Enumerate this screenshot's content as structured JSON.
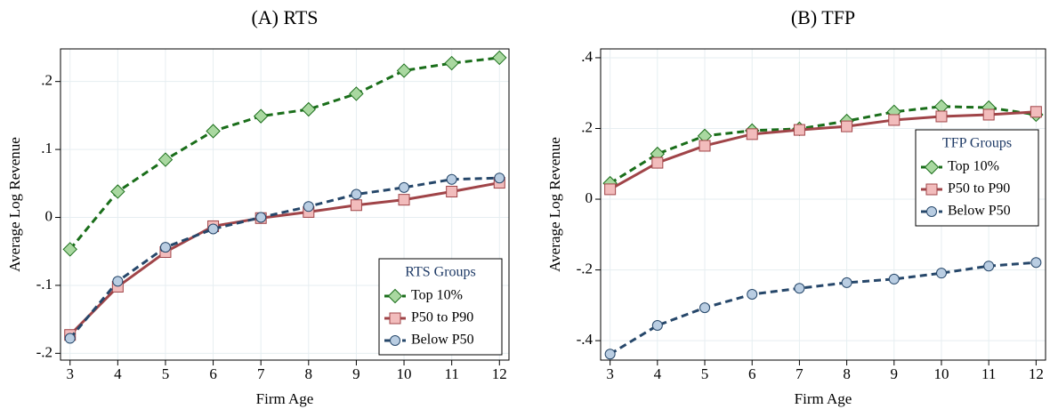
{
  "chart_data": [
    {
      "type": "line",
      "title": "(A) RTS",
      "x_label": "Firm Age",
      "y_label": "Average Log Revenue",
      "x": [
        3,
        4,
        5,
        6,
        7,
        8,
        9,
        10,
        11,
        12
      ],
      "xlim": [
        2.8,
        12.2
      ],
      "xticks": [
        3,
        4,
        5,
        6,
        7,
        8,
        9,
        10,
        11,
        12
      ],
      "ylim": [
        -0.21,
        0.248
      ],
      "yticks": [
        {
          "value": -0.2,
          "label": "-.2"
        },
        {
          "value": -0.1,
          "label": "-.1"
        },
        0,
        {
          "value": 0.1,
          "label": ".1"
        },
        {
          "value": 0.2,
          "label": ".2"
        }
      ],
      "grid": true,
      "legend_title": "RTS Groups",
      "legend_position": "lower right",
      "series": [
        {
          "name": "Top 10%",
          "color": "#1a6e1a",
          "marker_color": "#a9d8a0",
          "marker": "diamond",
          "dashed": true,
          "values": [
            -0.047,
            0.038,
            0.085,
            0.127,
            0.149,
            0.159,
            0.182,
            0.216,
            0.227,
            0.235
          ]
        },
        {
          "name": "P50 to P90",
          "color": "#a04448",
          "marker_color": "#f2bcbc",
          "marker": "square",
          "dashed": false,
          "values": [
            -0.173,
            -0.102,
            -0.051,
            -0.013,
            -0.001,
            0.008,
            0.018,
            0.026,
            0.038,
            0.051
          ]
        },
        {
          "name": "Below P50",
          "color": "#26476a",
          "marker_color": "#b9cde2",
          "marker": "circle",
          "dashed": true,
          "values": [
            -0.178,
            -0.094,
            -0.044,
            -0.017,
            0.0,
            0.016,
            0.034,
            0.044,
            0.056,
            0.058
          ]
        }
      ]
    },
    {
      "type": "line",
      "title": "(B) TFP",
      "x_label": "Firm Age",
      "y_label": "Average Log Revenue",
      "x": [
        3,
        4,
        5,
        6,
        7,
        8,
        9,
        10,
        11,
        12
      ],
      "xlim": [
        2.8,
        12.2
      ],
      "xticks": [
        3,
        4,
        5,
        6,
        7,
        8,
        9,
        10,
        11,
        12
      ],
      "ylim": [
        -0.455,
        0.425
      ],
      "yticks": [
        {
          "value": -0.4,
          "label": "-.4"
        },
        {
          "value": -0.2,
          "label": "-.2"
        },
        0,
        {
          "value": 0.2,
          "label": ".2"
        },
        {
          "value": 0.4,
          "label": ".4"
        }
      ],
      "grid": true,
      "legend_title": "TFP Groups",
      "legend_position": "right",
      "series": [
        {
          "name": "Top 10%",
          "color": "#1a6e1a",
          "marker_color": "#a9d8a0",
          "marker": "diamond",
          "dashed": true,
          "values": [
            0.045,
            0.128,
            0.179,
            0.194,
            0.199,
            0.221,
            0.247,
            0.262,
            0.259,
            0.239
          ]
        },
        {
          "name": "P50 to P90",
          "color": "#a04448",
          "marker_color": "#f2bcbc",
          "marker": "square",
          "dashed": false,
          "values": [
            0.028,
            0.103,
            0.151,
            0.184,
            0.196,
            0.206,
            0.224,
            0.234,
            0.239,
            0.247
          ]
        },
        {
          "name": "Below P50",
          "color": "#26476a",
          "marker_color": "#b9cde2",
          "marker": "circle",
          "dashed": true,
          "values": [
            -0.438,
            -0.357,
            -0.307,
            -0.269,
            -0.252,
            -0.236,
            -0.226,
            -0.209,
            -0.189,
            -0.179
          ]
        }
      ]
    }
  ]
}
